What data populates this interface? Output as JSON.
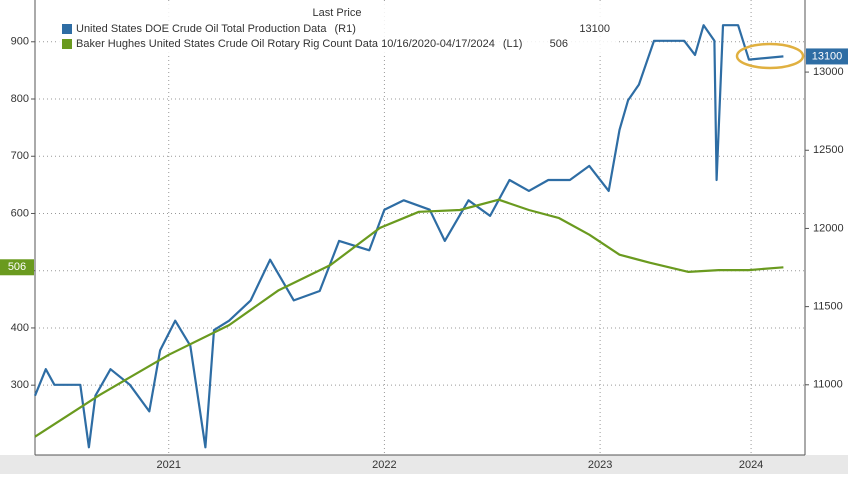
{
  "chart_data": {
    "type": "line",
    "legend_title": "Last Price",
    "xlim": [
      2020.88,
      2024.45
    ],
    "xticks": [
      {
        "value": 2021.5,
        "label": "2021"
      },
      {
        "value": 2022.5,
        "label": "2022"
      },
      {
        "value": 2023.5,
        "label": "2023"
      },
      {
        "value": 2024.2,
        "label": "2024"
      }
    ],
    "ylim": [
      178,
      973
    ],
    "yticks": [
      300,
      400,
      500,
      600,
      700,
      800,
      900
    ],
    "y2lim": [
      10551,
      13461
    ],
    "y2ticks": [
      11000,
      11500,
      12000,
      12500,
      13000
    ],
    "grid": true,
    "series": [
      {
        "name": "United States DOE Crude Oil Total Production Data",
        "axis_tag": "(R1)",
        "last": 13100,
        "color": "#2e6da4",
        "axis": "y2",
        "x": [
          2020.88,
          2020.93,
          2020.97,
          2021.09,
          2021.13,
          2021.16,
          2021.23,
          2021.32,
          2021.41,
          2021.46,
          2021.53,
          2021.6,
          2021.67,
          2021.71,
          2021.78,
          2021.88,
          2021.97,
          2022.08,
          2022.2,
          2022.29,
          2022.43,
          2022.5,
          2022.59,
          2022.71,
          2022.78,
          2022.89,
          2022.99,
          2023.08,
          2023.17,
          2023.26,
          2023.36,
          2023.45,
          2023.54,
          2023.59,
          2023.63,
          2023.68,
          2023.75,
          2023.89,
          2023.94,
          2023.98,
          2024.03,
          2024.04,
          2024.07,
          2024.14,
          2024.19,
          2024.35
        ],
        "values": [
          10930,
          11100,
          11000,
          11000,
          10600,
          10930,
          11100,
          11000,
          10830,
          11220,
          11410,
          11250,
          10600,
          11350,
          11410,
          11540,
          11800,
          11540,
          11600,
          11920,
          11860,
          12120,
          12180,
          12120,
          11920,
          12180,
          12080,
          12310,
          12240,
          12310,
          12310,
          12400,
          12240,
          12630,
          12820,
          12920,
          13200,
          13200,
          13110,
          13300,
          13200,
          12310,
          13300,
          13300,
          13080,
          13100
        ]
      },
      {
        "name": "Baker Hughes United States Crude Oil Rotary Rig Count Data 10/16/2020-04/17/2024",
        "axis_tag": "(L1)",
        "last": 506,
        "color": "#6a9a1f",
        "x": [
          2020.88,
          2021.18,
          2021.5,
          2021.78,
          2022.01,
          2022.25,
          2022.48,
          2022.66,
          2022.85,
          2023.03,
          2023.17,
          2023.31,
          2023.45,
          2023.59,
          2023.73,
          2023.91,
          2024.05,
          2024.19,
          2024.35
        ],
        "values": [
          210,
          283,
          353,
          405,
          466,
          510,
          575,
          603,
          606,
          624,
          606,
          592,
          563,
          528,
          514,
          498,
          501,
          501,
          506
        ]
      }
    ]
  }
}
